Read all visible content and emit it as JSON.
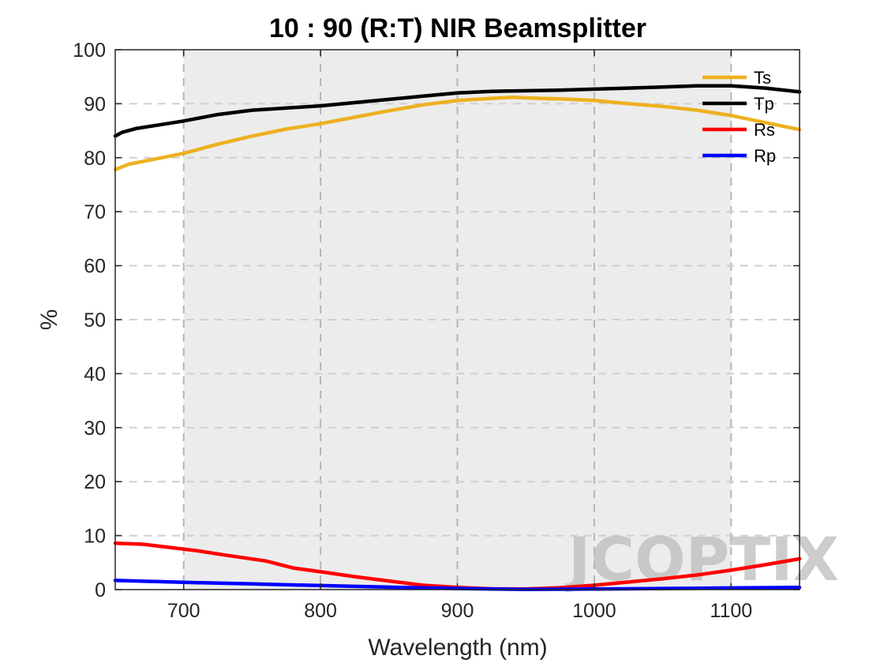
{
  "chart_data": {
    "type": "line",
    "title": "10 : 90 (R:T) NIR Beamsplitter",
    "xlabel": "Wavelength (nm)",
    "ylabel": "%",
    "xlim": [
      650,
      1150
    ],
    "ylim": [
      0,
      100
    ],
    "xticks": [
      700,
      800,
      900,
      1000,
      1100
    ],
    "yticks": [
      0,
      10,
      20,
      30,
      40,
      50,
      60,
      70,
      80,
      90,
      100
    ],
    "grid": true,
    "highlight_band": [
      700,
      1100
    ],
    "legend_position": "top-right",
    "series": [
      {
        "name": "Ts",
        "color": "#EDB120",
        "points": [
          [
            650,
            77.8
          ],
          [
            660,
            78.8
          ],
          [
            680,
            79.8
          ],
          [
            700,
            80.8
          ],
          [
            725,
            82.5
          ],
          [
            750,
            84.0
          ],
          [
            775,
            85.3
          ],
          [
            800,
            86.3
          ],
          [
            825,
            87.5
          ],
          [
            850,
            88.7
          ],
          [
            875,
            89.8
          ],
          [
            900,
            90.6
          ],
          [
            925,
            91.0
          ],
          [
            940,
            91.2
          ],
          [
            960,
            91.0
          ],
          [
            975,
            90.9
          ],
          [
            1000,
            90.6
          ],
          [
            1025,
            90.0
          ],
          [
            1050,
            89.5
          ],
          [
            1075,
            88.8
          ],
          [
            1100,
            87.8
          ],
          [
            1125,
            86.5
          ],
          [
            1150,
            85.2
          ]
        ]
      },
      {
        "name": "Tp",
        "color": "#000000",
        "points": [
          [
            650,
            84.0
          ],
          [
            655,
            84.7
          ],
          [
            665,
            85.4
          ],
          [
            680,
            86.0
          ],
          [
            700,
            86.8
          ],
          [
            725,
            88.0
          ],
          [
            750,
            88.8
          ],
          [
            775,
            89.2
          ],
          [
            800,
            89.6
          ],
          [
            825,
            90.2
          ],
          [
            850,
            90.8
          ],
          [
            875,
            91.4
          ],
          [
            900,
            92.0
          ],
          [
            925,
            92.3
          ],
          [
            950,
            92.4
          ],
          [
            975,
            92.5
          ],
          [
            1000,
            92.7
          ],
          [
            1025,
            92.9
          ],
          [
            1050,
            93.1
          ],
          [
            1075,
            93.3
          ],
          [
            1100,
            93.3
          ],
          [
            1125,
            92.9
          ],
          [
            1150,
            92.2
          ]
        ]
      },
      {
        "name": "Rs",
        "color": "#FF0000",
        "points": [
          [
            650,
            8.6
          ],
          [
            670,
            8.4
          ],
          [
            690,
            7.8
          ],
          [
            710,
            7.2
          ],
          [
            730,
            6.4
          ],
          [
            760,
            5.3
          ],
          [
            780,
            4.0
          ],
          [
            800,
            3.3
          ],
          [
            825,
            2.4
          ],
          [
            850,
            1.6
          ],
          [
            875,
            0.8
          ],
          [
            900,
            0.4
          ],
          [
            925,
            0.15
          ],
          [
            950,
            0.1
          ],
          [
            975,
            0.35
          ],
          [
            1000,
            0.8
          ],
          [
            1025,
            1.4
          ],
          [
            1050,
            2.0
          ],
          [
            1075,
            2.7
          ],
          [
            1100,
            3.6
          ],
          [
            1125,
            4.6
          ],
          [
            1150,
            5.7
          ]
        ]
      },
      {
        "name": "Rp",
        "color": "#0000FF",
        "points": [
          [
            650,
            1.7
          ],
          [
            700,
            1.35
          ],
          [
            750,
            1.05
          ],
          [
            800,
            0.75
          ],
          [
            850,
            0.45
          ],
          [
            900,
            0.2
          ],
          [
            925,
            0.1
          ],
          [
            950,
            0.05
          ],
          [
            1000,
            0.1
          ],
          [
            1050,
            0.2
          ],
          [
            1100,
            0.3
          ],
          [
            1150,
            0.4
          ]
        ]
      }
    ]
  },
  "watermark": {
    "text": "JCOPTIX",
    "color": "#bdbdbd",
    "accent_color": "#f2c89a"
  }
}
